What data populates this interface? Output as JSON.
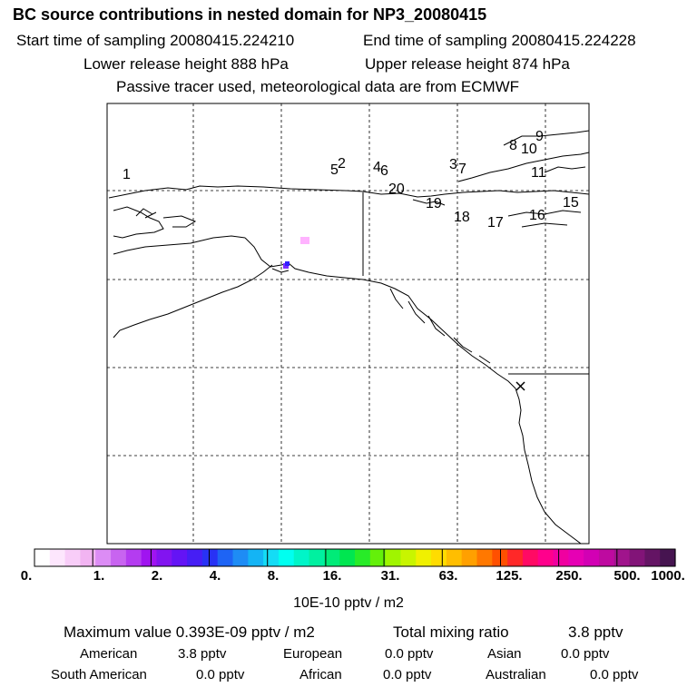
{
  "header": {
    "title": "BC  source contributions in nested domain for NP3_20080415",
    "start_time": "Start time of sampling 20080415.224210",
    "end_time": "End time of sampling 20080415.224228",
    "lower_release": "Lower release height  888 hPa",
    "upper_release": "Upper release height  874 hPa",
    "tracer_note": "Passive tracer used, meteorological data are from ECMWF"
  },
  "map": {
    "number_labels": [
      "1",
      "2",
      "3",
      "4",
      "5",
      "6",
      "7",
      "8",
      "9",
      "10",
      "11",
      "15",
      "16",
      "17",
      "18",
      "19",
      "20"
    ],
    "cell_colors": [
      "#ffb3ff",
      "#7b2cff",
      "#2f1fff"
    ]
  },
  "colorbar": {
    "tick_labels": [
      "0.",
      "1.",
      "2.",
      "4.",
      "8.",
      "16.",
      "31.",
      "63.",
      "125.",
      "250.",
      "500.",
      "1000."
    ],
    "colors": [
      "#ffffff",
      "#fde6fd",
      "#f8cdf8",
      "#f2b4f2",
      "#dc8cf5",
      "#c864f0",
      "#b43cf0",
      "#a014f0",
      "#8214f0",
      "#6414f5",
      "#461ef5",
      "#2832f5",
      "#1e64f5",
      "#1e8cf5",
      "#14b4f5",
      "#14dcf5",
      "#00fff0",
      "#00f5c8",
      "#00f0a0",
      "#00eb78",
      "#00e650",
      "#28eb28",
      "#64f00a",
      "#a0f500",
      "#c8f500",
      "#f0f000",
      "#ffdc00",
      "#ffbe00",
      "#ffa000",
      "#ff7800",
      "#ff5000",
      "#ff2828",
      "#ff0a64",
      "#ff008c",
      "#f000a0",
      "#e600b4",
      "#d200b4",
      "#be0aa0",
      "#a0148c",
      "#821478",
      "#641464",
      "#461450"
    ],
    "units": "10E-10 pptv / m2"
  },
  "summary": {
    "maximum": "Maximum value  0.393E-09 pptv / m2",
    "total_label": "Total mixing ratio",
    "total_value": "3.8 pptv",
    "rows": [
      [
        {
          "label": "American",
          "value": "3.8 pptv"
        },
        {
          "label": "European",
          "value": "0.0 pptv"
        },
        {
          "label": "Asian",
          "value": "0.0 pptv"
        }
      ],
      [
        {
          "label": "South American",
          "value": "0.0 pptv"
        },
        {
          "label": "African",
          "value": "0.0 pptv"
        },
        {
          "label": "Australian",
          "value": "0.0 pptv"
        }
      ]
    ]
  }
}
